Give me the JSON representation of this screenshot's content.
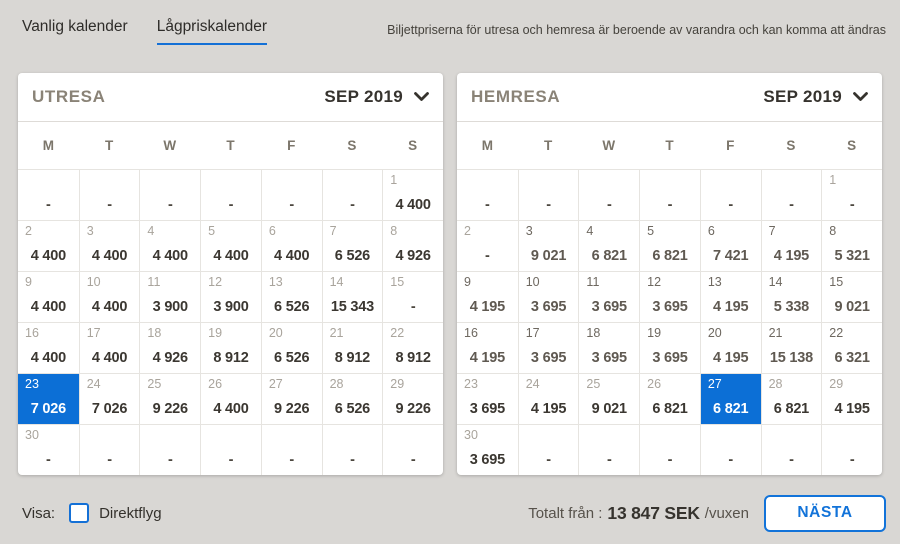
{
  "tabs": [
    {
      "label": "Vanlig kalender",
      "active": false
    },
    {
      "label": "Lågpriskalender",
      "active": true
    }
  ],
  "info_text": "Biljettpriserna för utresa och hemresa är beroende av varandra och kan komma att ändras",
  "weekdays": [
    "M",
    "T",
    "W",
    "T",
    "F",
    "S",
    "S"
  ],
  "outbound": {
    "title": "UTRESA",
    "month": "SEP 2019",
    "cells": [
      {
        "d": "",
        "p": "-",
        "s": "emp"
      },
      {
        "d": "",
        "p": "-",
        "s": "emp"
      },
      {
        "d": "",
        "p": "-",
        "s": "emp"
      },
      {
        "d": "",
        "p": "-",
        "s": "emp"
      },
      {
        "d": "",
        "p": "-",
        "s": "emp"
      },
      {
        "d": "",
        "p": "-",
        "s": "emp"
      },
      {
        "d": "1",
        "p": "4 400",
        "s": "nrm"
      },
      {
        "d": "2",
        "p": "4 400",
        "s": "nrm"
      },
      {
        "d": "3",
        "p": "4 400",
        "s": "nrm"
      },
      {
        "d": "4",
        "p": "4 400",
        "s": "nrm"
      },
      {
        "d": "5",
        "p": "4 400",
        "s": "nrm"
      },
      {
        "d": "6",
        "p": "4 400",
        "s": "nrm"
      },
      {
        "d": "7",
        "p": "6 526",
        "s": "nrm"
      },
      {
        "d": "8",
        "p": "4 926",
        "s": "nrm"
      },
      {
        "d": "9",
        "p": "4 400",
        "s": "nrm"
      },
      {
        "d": "10",
        "p": "4 400",
        "s": "nrm"
      },
      {
        "d": "11",
        "p": "3 900",
        "s": "nrm"
      },
      {
        "d": "12",
        "p": "3 900",
        "s": "nrm"
      },
      {
        "d": "13",
        "p": "6 526",
        "s": "nrm"
      },
      {
        "d": "14",
        "p": "15 343",
        "s": "nrm"
      },
      {
        "d": "15",
        "p": "-",
        "s": "na"
      },
      {
        "d": "16",
        "p": "4 400",
        "s": "nrm"
      },
      {
        "d": "17",
        "p": "4 400",
        "s": "nrm"
      },
      {
        "d": "18",
        "p": "4 926",
        "s": "nrm"
      },
      {
        "d": "19",
        "p": "8 912",
        "s": "nrm"
      },
      {
        "d": "20",
        "p": "6 526",
        "s": "nrm"
      },
      {
        "d": "21",
        "p": "8 912",
        "s": "nrm"
      },
      {
        "d": "22",
        "p": "8 912",
        "s": "nrm"
      },
      {
        "d": "23",
        "p": "7 026",
        "s": "sel"
      },
      {
        "d": "24",
        "p": "7 026",
        "s": "nrm"
      },
      {
        "d": "25",
        "p": "9 226",
        "s": "nrm"
      },
      {
        "d": "26",
        "p": "4 400",
        "s": "nrm"
      },
      {
        "d": "27",
        "p": "9 226",
        "s": "nrm"
      },
      {
        "d": "28",
        "p": "6 526",
        "s": "nrm"
      },
      {
        "d": "29",
        "p": "9 226",
        "s": "nrm"
      },
      {
        "d": "30",
        "p": "-",
        "s": "na"
      },
      {
        "d": "",
        "p": "-",
        "s": "emp"
      },
      {
        "d": "",
        "p": "-",
        "s": "emp"
      },
      {
        "d": "",
        "p": "-",
        "s": "emp"
      },
      {
        "d": "",
        "p": "-",
        "s": "emp"
      },
      {
        "d": "",
        "p": "-",
        "s": "emp"
      },
      {
        "d": "",
        "p": "-",
        "s": "emp"
      }
    ]
  },
  "homebound": {
    "title": "HEMRESA",
    "month": "SEP 2019",
    "cells": [
      {
        "d": "",
        "p": "-",
        "s": "emp"
      },
      {
        "d": "",
        "p": "-",
        "s": "emp"
      },
      {
        "d": "",
        "p": "-",
        "s": "emp"
      },
      {
        "d": "",
        "p": "-",
        "s": "emp"
      },
      {
        "d": "",
        "p": "-",
        "s": "emp"
      },
      {
        "d": "",
        "p": "-",
        "s": "emp"
      },
      {
        "d": "1",
        "p": "-",
        "s": "na"
      },
      {
        "d": "2",
        "p": "-",
        "s": "na"
      },
      {
        "d": "3",
        "p": "9 021",
        "s": "mut"
      },
      {
        "d": "4",
        "p": "6 821",
        "s": "mut"
      },
      {
        "d": "5",
        "p": "6 821",
        "s": "mut"
      },
      {
        "d": "6",
        "p": "7 421",
        "s": "mut"
      },
      {
        "d": "7",
        "p": "4 195",
        "s": "mut"
      },
      {
        "d": "8",
        "p": "5 321",
        "s": "mut"
      },
      {
        "d": "9",
        "p": "4 195",
        "s": "mut"
      },
      {
        "d": "10",
        "p": "3 695",
        "s": "mut"
      },
      {
        "d": "11",
        "p": "3 695",
        "s": "mut"
      },
      {
        "d": "12",
        "p": "3 695",
        "s": "mut"
      },
      {
        "d": "13",
        "p": "4 195",
        "s": "mut"
      },
      {
        "d": "14",
        "p": "5 338",
        "s": "mut"
      },
      {
        "d": "15",
        "p": "9 021",
        "s": "mut"
      },
      {
        "d": "16",
        "p": "4 195",
        "s": "mut"
      },
      {
        "d": "17",
        "p": "3 695",
        "s": "mut"
      },
      {
        "d": "18",
        "p": "3 695",
        "s": "mut"
      },
      {
        "d": "19",
        "p": "3 695",
        "s": "mut"
      },
      {
        "d": "20",
        "p": "4 195",
        "s": "mut"
      },
      {
        "d": "21",
        "p": "15 138",
        "s": "mut"
      },
      {
        "d": "22",
        "p": "6 321",
        "s": "mut"
      },
      {
        "d": "23",
        "p": "3 695",
        "s": "nrm"
      },
      {
        "d": "24",
        "p": "4 195",
        "s": "nrm"
      },
      {
        "d": "25",
        "p": "9 021",
        "s": "nrm"
      },
      {
        "d": "26",
        "p": "6 821",
        "s": "nrm"
      },
      {
        "d": "27",
        "p": "6 821",
        "s": "sel"
      },
      {
        "d": "28",
        "p": "6 821",
        "s": "nrm"
      },
      {
        "d": "29",
        "p": "4 195",
        "s": "nrm"
      },
      {
        "d": "30",
        "p": "3 695",
        "s": "nrm"
      },
      {
        "d": "",
        "p": "-",
        "s": "emp"
      },
      {
        "d": "",
        "p": "-",
        "s": "emp"
      },
      {
        "d": "",
        "p": "-",
        "s": "emp"
      },
      {
        "d": "",
        "p": "-",
        "s": "emp"
      },
      {
        "d": "",
        "p": "-",
        "s": "emp"
      },
      {
        "d": "",
        "p": "-",
        "s": "emp"
      }
    ]
  },
  "footer": {
    "visa_label": "Visa:",
    "direktflyg_label": "Direktflyg",
    "total_label": "Totalt från :",
    "total_value": "13 847 SEK",
    "total_suffix": "/vuxen",
    "next_label": "NÄSTA"
  },
  "colors": {
    "accent_blue": "#0c6fd6",
    "page_bg": "#d9d7d4",
    "title_gray": "#8a8377",
    "price_dark": "#3b3731",
    "price_muted": "#5f5951",
    "selected_text": "#ffffff"
  }
}
